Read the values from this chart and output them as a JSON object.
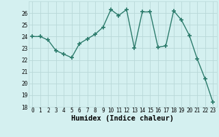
{
  "xlabel": "Humidex (Indice chaleur)",
  "x": [
    0,
    1,
    2,
    3,
    4,
    5,
    6,
    7,
    8,
    9,
    10,
    11,
    12,
    13,
    14,
    15,
    16,
    17,
    18,
    19,
    20,
    21,
    22,
    23
  ],
  "y": [
    24.0,
    24.0,
    23.7,
    22.8,
    22.5,
    22.2,
    23.4,
    23.8,
    24.2,
    24.8,
    26.3,
    25.8,
    26.3,
    23.0,
    26.1,
    26.1,
    23.1,
    23.2,
    26.2,
    25.4,
    24.1,
    22.1,
    20.4,
    18.4
  ],
  "line_color": "#2a7a6a",
  "marker": "+",
  "marker_size": 4,
  "line_width": 1.0,
  "bg_color": "#d4f0f0",
  "grid_color": "#b8d8d8",
  "ylim": [
    18,
    27
  ],
  "xlim": [
    -0.5,
    23.5
  ],
  "yticks": [
    18,
    19,
    20,
    21,
    22,
    23,
    24,
    25,
    26
  ],
  "xticks": [
    0,
    1,
    2,
    3,
    4,
    5,
    6,
    7,
    8,
    9,
    10,
    11,
    12,
    13,
    14,
    15,
    16,
    17,
    18,
    19,
    20,
    21,
    22,
    23
  ],
  "tick_fontsize": 5.5,
  "xlabel_fontsize": 7.5
}
